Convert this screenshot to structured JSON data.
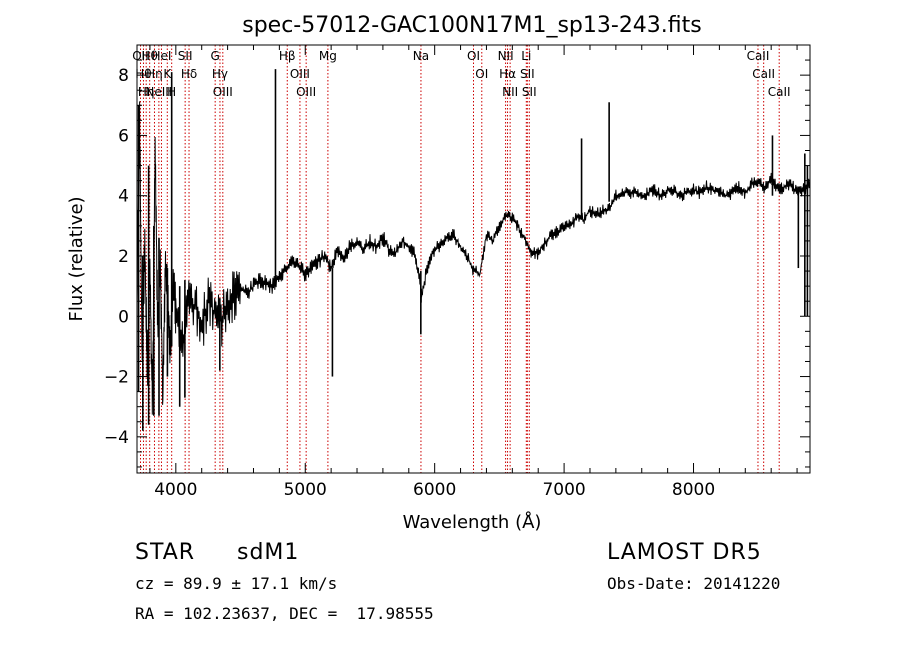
{
  "chart_data": {
    "type": "line",
    "title": "spec-57012-GAC100N17M1_sp13-243.fits",
    "xlabel": "Wavelength (Å)",
    "ylabel": "Flux (relative)",
    "xlim": [
      3700,
      8900
    ],
    "ylim": [
      -5.2,
      9.0
    ],
    "x_ticks": [
      4000,
      5000,
      6000,
      7000,
      8000
    ],
    "y_ticks": [
      -4,
      -2,
      0,
      2,
      4,
      6,
      8
    ],
    "grid": false,
    "series": [
      {
        "x": [
          3700,
          3720,
          3740,
          3760,
          3780,
          3800,
          3820,
          3840,
          3860,
          3880,
          3900,
          3920,
          3940,
          3960,
          3980,
          4000,
          4050,
          4100,
          4150,
          4200,
          4250,
          4300,
          4350,
          4400,
          4450,
          4500,
          4550,
          4600,
          4650,
          4700,
          4750,
          4800,
          4850,
          4900,
          4950,
          5000,
          5050,
          5100,
          5150,
          5200,
          5250,
          5300,
          5350,
          5400,
          5450,
          5500,
          5550,
          5600,
          5650,
          5700,
          5750,
          5800,
          5850,
          5890,
          5900,
          5950,
          6000,
          6050,
          6100,
          6150,
          6200,
          6250,
          6300,
          6350,
          6400,
          6450,
          6500,
          6550,
          6600,
          6650,
          6700,
          6750,
          6800,
          6850,
          6900,
          6950,
          7000,
          7050,
          7100,
          7150,
          7200,
          7250,
          7300,
          7350,
          7400,
          7450,
          7500,
          7550,
          7600,
          7650,
          7700,
          7750,
          7800,
          7850,
          7900,
          7950,
          8000,
          8050,
          8100,
          8150,
          8200,
          8250,
          8300,
          8350,
          8400,
          8450,
          8500,
          8550,
          8600,
          8650,
          8700,
          8750,
          8800,
          8850,
          8900
        ],
        "values": [
          0.5,
          6.3,
          -1.5,
          2.4,
          -2.0,
          1.5,
          -3.2,
          5.8,
          -0.5,
          1.8,
          -2.8,
          2.0,
          0.3,
          -1.2,
          1.4,
          0.2,
          -1.0,
          0.8,
          0.3,
          -0.4,
          0.6,
          0.1,
          -0.2,
          0.4,
          0.7,
          0.9,
          0.8,
          1.0,
          1.2,
          1.1,
          1.0,
          1.3,
          1.6,
          1.9,
          1.7,
          1.4,
          1.6,
          1.8,
          2.0,
          1.6,
          2.2,
          2.0,
          2.3,
          2.4,
          2.2,
          2.5,
          2.3,
          2.6,
          2.2,
          2.1,
          2.5,
          2.3,
          2.0,
          1.0,
          0.6,
          1.8,
          2.2,
          2.4,
          2.6,
          2.7,
          2.3,
          2.0,
          1.5,
          1.4,
          2.7,
          2.5,
          3.0,
          3.3,
          3.3,
          2.9,
          2.5,
          2.1,
          2.1,
          2.4,
          2.7,
          2.8,
          3.0,
          3.0,
          3.3,
          3.2,
          3.5,
          3.4,
          3.5,
          3.6,
          4.0,
          4.1,
          4.1,
          4.1,
          4.0,
          4.1,
          4.2,
          4.0,
          4.2,
          4.2,
          4.0,
          4.1,
          4.2,
          4.1,
          4.3,
          4.2,
          4.1,
          4.0,
          4.1,
          4.3,
          4.1,
          4.4,
          4.5,
          4.2,
          4.6,
          4.2,
          4.3,
          4.4,
          4.1,
          4.2,
          4.4
        ],
        "spikes": [
          {
            "x": 3712,
            "top": 7.0,
            "bottom": -2.5
          },
          {
            "x": 3745,
            "top": 2.0,
            "bottom": -3.8
          },
          {
            "x": 3790,
            "top": 5.0,
            "bottom": -3.6
          },
          {
            "x": 3830,
            "top": 3.0,
            "bottom": -3.3
          },
          {
            "x": 3870,
            "top": 2.6,
            "bottom": -3.3
          },
          {
            "x": 3935,
            "top": 1.6,
            "bottom": -2.0
          },
          {
            "x": 3968,
            "top": 8.1,
            "bottom": -1.0
          },
          {
            "x": 4030,
            "top": 1.0,
            "bottom": -3.0
          },
          {
            "x": 4070,
            "top": 1.2,
            "bottom": -2.7
          },
          {
            "x": 4340,
            "top": 0.6,
            "bottom": -1.8
          },
          {
            "x": 4770,
            "top": 8.2,
            "bottom": 1.0
          },
          {
            "x": 5210,
            "top": 1.6,
            "bottom": -2.0
          },
          {
            "x": 5893,
            "top": 1.5,
            "bottom": -0.6
          },
          {
            "x": 7135,
            "top": 5.9,
            "bottom": 3.3
          },
          {
            "x": 7348,
            "top": 7.1,
            "bottom": 3.8
          },
          {
            "x": 8610,
            "top": 6.0,
            "bottom": 4.0
          },
          {
            "x": 8810,
            "top": 4.2,
            "bottom": 1.6
          },
          {
            "x": 8860,
            "top": 5.4,
            "bottom": 0.0
          },
          {
            "x": 8880,
            "top": 5.0,
            "bottom": 0.0
          }
        ]
      }
    ],
    "line_markers": [
      {
        "x": 3727,
        "label": "OII"
      },
      {
        "x": 3750,
        "label": "Hθ"
      },
      {
        "x": 3771,
        "label": "Hη"
      },
      {
        "x": 3798,
        "label": "Hθ"
      },
      {
        "x": 3835,
        "label": "Hη"
      },
      {
        "x": 3869,
        "label": "NeIII"
      },
      {
        "x": 3889,
        "label": "HeI"
      },
      {
        "x": 3934,
        "label": "K"
      },
      {
        "x": 3968,
        "label": "H"
      },
      {
        "x": 4072,
        "label": "SII"
      },
      {
        "x": 4102,
        "label": "Hδ"
      },
      {
        "x": 4304,
        "label": "G"
      },
      {
        "x": 4341,
        "label": "Hγ"
      },
      {
        "x": 4363,
        "label": "OIII"
      },
      {
        "x": 4861,
        "label": "Hβ"
      },
      {
        "x": 4959,
        "label": "OIII"
      },
      {
        "x": 5007,
        "label": "OIII"
      },
      {
        "x": 5175,
        "label": "Mg"
      },
      {
        "x": 5894,
        "label": "Na"
      },
      {
        "x": 6300,
        "label": "OI"
      },
      {
        "x": 6364,
        "label": "OI"
      },
      {
        "x": 6548,
        "label": "NII"
      },
      {
        "x": 6563,
        "label": "Hα"
      },
      {
        "x": 6583,
        "label": "NII"
      },
      {
        "x": 6708,
        "label": "Li"
      },
      {
        "x": 6716,
        "label": "SII"
      },
      {
        "x": 6731,
        "label": "SII"
      },
      {
        "x": 8498,
        "label": "CaII"
      },
      {
        "x": 8542,
        "label": "CaII"
      },
      {
        "x": 8662,
        "label": "CaII"
      }
    ]
  },
  "footer": {
    "object_class": "STAR",
    "subclass": "sdM1",
    "survey": "LAMOST DR5",
    "cz": "cz = 89.9 ± 17.1 km/s",
    "obs_date": "Obs-Date: 20141220",
    "coords": "RA = 102.23637, DEC =  17.98555"
  },
  "colors": {
    "line": "#000000",
    "marker": "#cc0000",
    "background": "#ffffff"
  }
}
